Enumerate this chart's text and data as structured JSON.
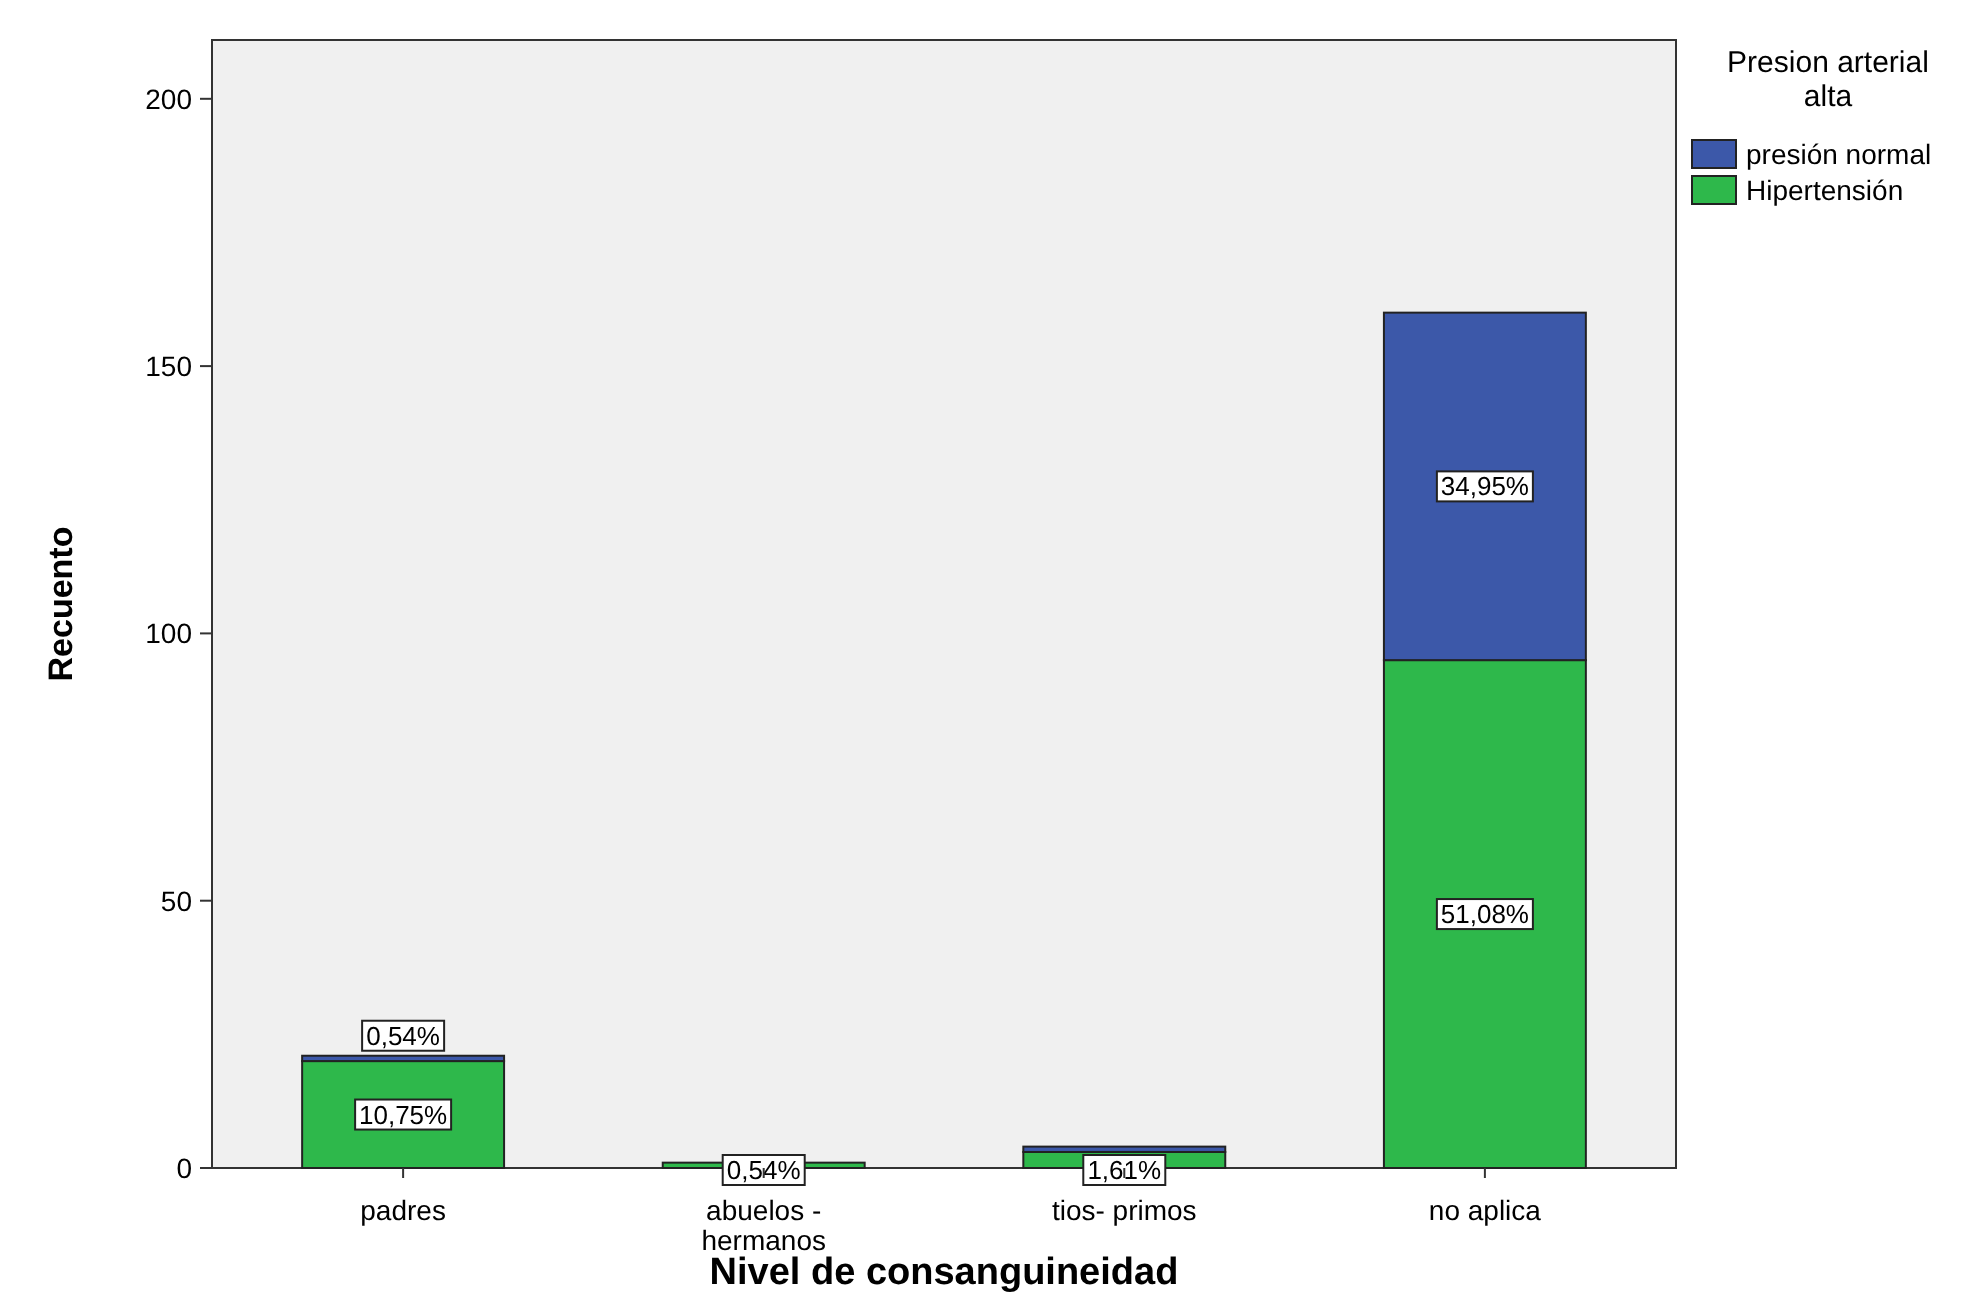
{
  "chart_data": {
    "type": "bar",
    "stacked": true,
    "xlabel": "Nivel de consanguineidad",
    "ylabel": "Recuento",
    "legend_title": "Presion arterial alta",
    "legend": "top right",
    "grid": false,
    "categories": [
      "padres",
      "abuelos - hermanos",
      "tios- primos",
      "no aplica"
    ],
    "series": [
      {
        "name": "Hipertensión",
        "color": "#2eb84b",
        "values": [
          20,
          1,
          3,
          95
        ]
      },
      {
        "name": "presión normal",
        "color": "#3c58a9",
        "values": [
          1,
          0,
          1,
          65
        ]
      }
    ],
    "annotations": [
      {
        "text": "10,75%",
        "x": "padres",
        "y": 20
      },
      {
        "text": "0,54%",
        "x": "padres",
        "y": 21
      },
      {
        "text": "0,54%",
        "x": "abuelos - hermanos",
        "y": 1
      },
      {
        "text": "1,61%",
        "x": "tios- primos",
        "y": 3
      },
      "51,08%",
      "34,95%"
    ],
    "ylim": [
      0,
      211
    ],
    "yticks": [
      0,
      50,
      100,
      150,
      200
    ]
  }
}
